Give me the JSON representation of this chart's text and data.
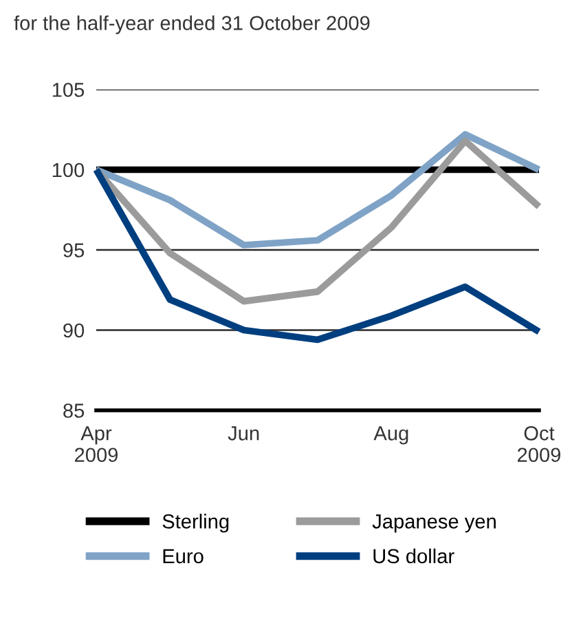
{
  "chart_data": {
    "type": "line",
    "title": "for the half-year ended 31 October 2009",
    "categories": [
      "Apr\n2009",
      null,
      "Jun",
      null,
      "Aug",
      null,
      "Oct\n2009"
    ],
    "series": [
      {
        "name": "Sterling",
        "color": "#000000",
        "values": [
          100,
          100,
          100,
          100,
          100,
          100,
          100
        ]
      },
      {
        "name": "Euro",
        "color": "#7fa3c6",
        "values": [
          100,
          98.1,
          95.3,
          95.6,
          98.4,
          102.2,
          100
        ]
      },
      {
        "name": "Japanese yen",
        "color": "#9b9b9b",
        "values": [
          100,
          94.8,
          91.8,
          92.4,
          96.4,
          101.8,
          97.7
        ]
      },
      {
        "name": "US dollar",
        "color": "#003f7f",
        "values": [
          100,
          91.9,
          90.0,
          89.4,
          90.9,
          92.7,
          89.9
        ]
      }
    ],
    "ylim": [
      85,
      105
    ],
    "yticks": [
      85,
      90,
      95,
      100,
      105
    ],
    "grid": "y",
    "legend": "bottom",
    "marker": "none",
    "line_style": "solid"
  }
}
